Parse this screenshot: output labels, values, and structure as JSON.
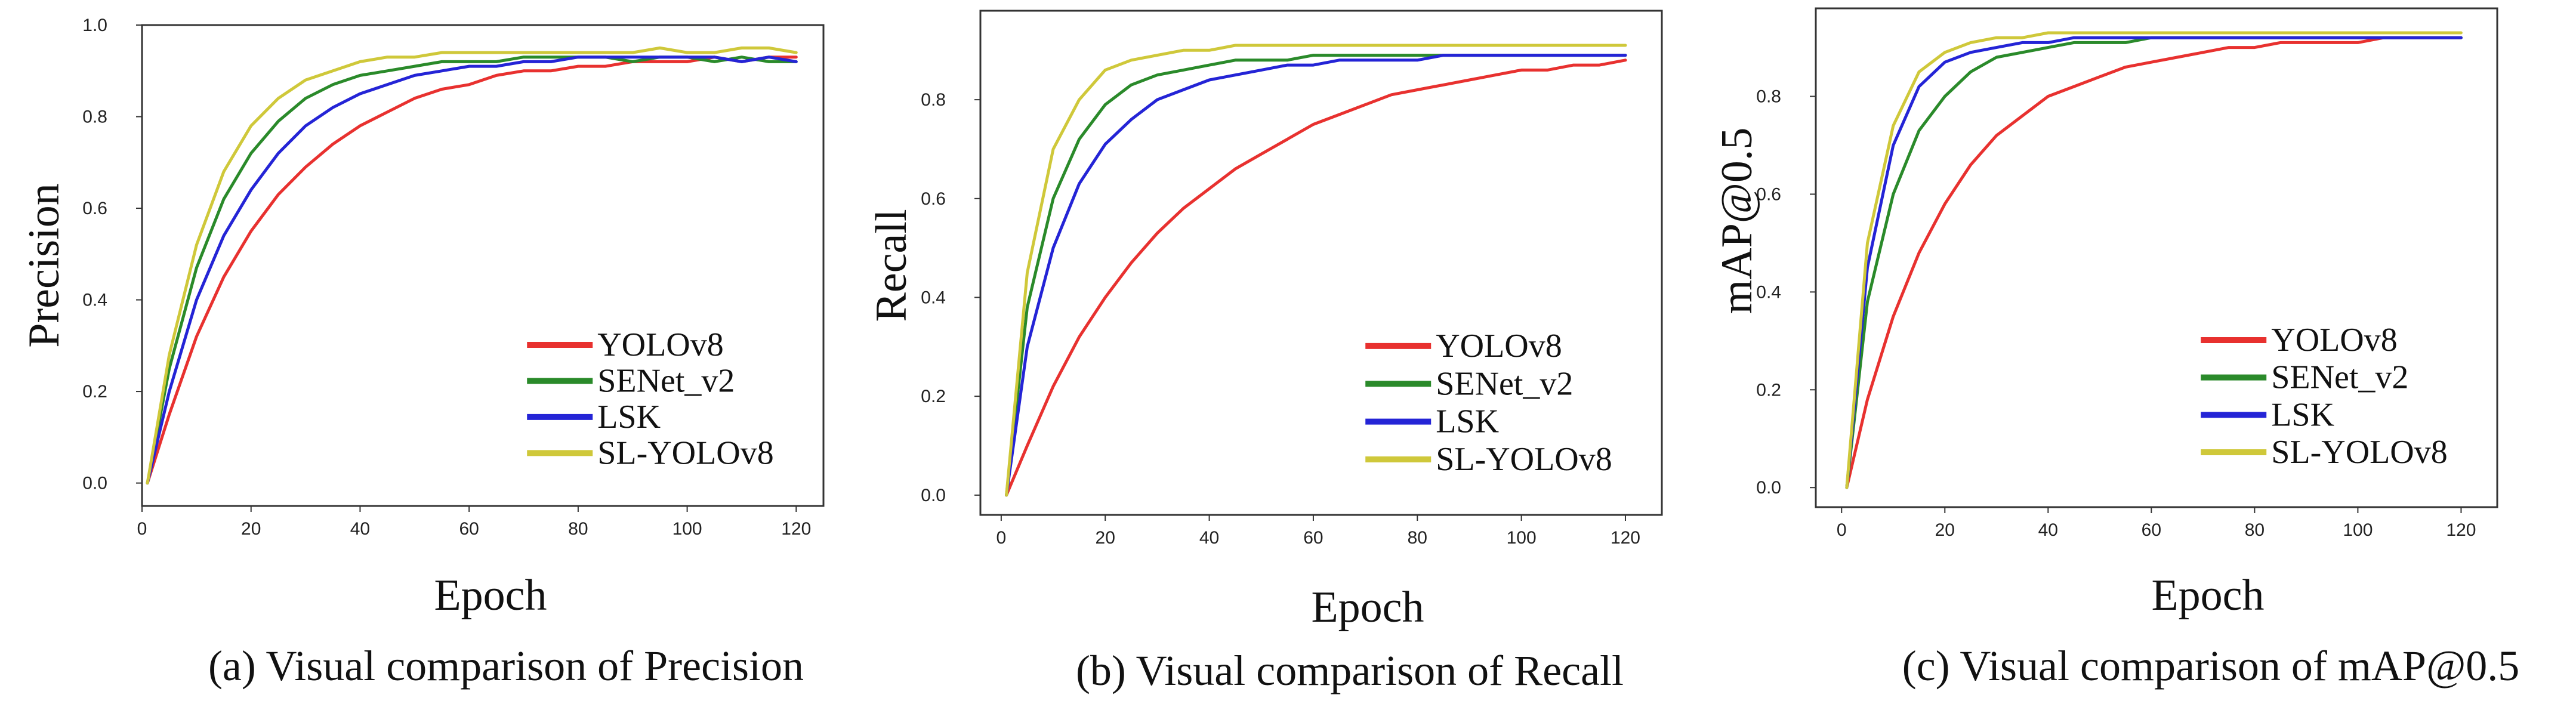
{
  "figure": {
    "colors": {
      "YOLOv8": "#e8312f",
      "SENet_v2": "#2a8a2a",
      "LSK": "#2424d6",
      "SL-YOLOv8": "#cfc83a"
    }
  },
  "chart_data": [
    {
      "type": "line",
      "ylabel": "Precision",
      "xlabel": "Epoch",
      "caption": "(a) Visual comparison of Precision",
      "xlim": [
        0,
        125
      ],
      "ylim": [
        -0.05,
        1.0
      ],
      "xticks": [
        0,
        20,
        40,
        60,
        80,
        100,
        120
      ],
      "xtick_labels": [
        "0",
        "20",
        "40",
        "60",
        "80",
        "100",
        "120"
      ],
      "yticks": [
        0.0,
        0.2,
        0.4,
        0.6,
        0.8,
        1.0
      ],
      "ytick_labels": [
        "0.0",
        "0.2",
        "0.4",
        "0.6",
        "0.8",
        "1.0"
      ],
      "legend": [
        "YOLOv8",
        "SENet_v2",
        "LSK",
        "SL-YOLOv8"
      ],
      "legend_position": "bottom-right",
      "x": [
        1,
        5,
        10,
        15,
        20,
        25,
        30,
        35,
        40,
        45,
        50,
        55,
        60,
        65,
        70,
        75,
        80,
        85,
        90,
        95,
        100,
        105,
        110,
        115,
        120
      ],
      "series": [
        {
          "name": "YOLOv8",
          "values": [
            0.0,
            0.15,
            0.32,
            0.45,
            0.55,
            0.63,
            0.69,
            0.74,
            0.78,
            0.81,
            0.84,
            0.86,
            0.87,
            0.89,
            0.9,
            0.9,
            0.91,
            0.91,
            0.92,
            0.92,
            0.92,
            0.93,
            0.92,
            0.93,
            0.93
          ]
        },
        {
          "name": "SENet_v2",
          "values": [
            0.0,
            0.25,
            0.47,
            0.62,
            0.72,
            0.79,
            0.84,
            0.87,
            0.89,
            0.9,
            0.91,
            0.92,
            0.92,
            0.92,
            0.93,
            0.93,
            0.93,
            0.93,
            0.92,
            0.93,
            0.93,
            0.92,
            0.93,
            0.92,
            0.92
          ]
        },
        {
          "name": "LSK",
          "values": [
            0.0,
            0.2,
            0.4,
            0.54,
            0.64,
            0.72,
            0.78,
            0.82,
            0.85,
            0.87,
            0.89,
            0.9,
            0.91,
            0.91,
            0.92,
            0.92,
            0.93,
            0.93,
            0.93,
            0.93,
            0.93,
            0.93,
            0.92,
            0.93,
            0.92
          ]
        },
        {
          "name": "SL-YOLOv8",
          "values": [
            0.0,
            0.28,
            0.52,
            0.68,
            0.78,
            0.84,
            0.88,
            0.9,
            0.92,
            0.93,
            0.93,
            0.94,
            0.94,
            0.94,
            0.94,
            0.94,
            0.94,
            0.94,
            0.94,
            0.95,
            0.94,
            0.94,
            0.95,
            0.95,
            0.94
          ]
        }
      ]
    },
    {
      "type": "line",
      "ylabel": "Recall",
      "xlabel": "Epoch",
      "caption": "(b) Visual comparison of Recall",
      "xlim": [
        -4,
        127
      ],
      "ylim": [
        -0.04,
        0.98
      ],
      "xticks": [
        0,
        20,
        40,
        60,
        80,
        100,
        120
      ],
      "xtick_labels": [
        "0",
        "20",
        "40",
        "60",
        "80",
        "100",
        "120"
      ],
      "yticks": [
        0.0,
        0.2,
        0.4,
        0.6,
        0.8
      ],
      "ytick_labels": [
        "0.0",
        "0.2",
        "0.4",
        "0.6",
        "0.8"
      ],
      "legend": [
        "YOLOv8",
        "SENet_v2",
        "LSK",
        "SL-YOLOv8"
      ],
      "legend_position": "bottom-right",
      "x": [
        1,
        5,
        10,
        15,
        20,
        25,
        30,
        35,
        40,
        45,
        50,
        55,
        60,
        65,
        70,
        75,
        80,
        85,
        90,
        95,
        100,
        105,
        110,
        115,
        120
      ],
      "series": [
        {
          "name": "YOLOv8",
          "values": [
            0.0,
            0.1,
            0.22,
            0.32,
            0.4,
            0.47,
            0.53,
            0.58,
            0.62,
            0.66,
            0.69,
            0.72,
            0.75,
            0.77,
            0.79,
            0.81,
            0.82,
            0.83,
            0.84,
            0.85,
            0.86,
            0.86,
            0.87,
            0.87,
            0.88
          ]
        },
        {
          "name": "SENet_v2",
          "values": [
            0.0,
            0.38,
            0.6,
            0.72,
            0.79,
            0.83,
            0.85,
            0.86,
            0.87,
            0.88,
            0.88,
            0.88,
            0.89,
            0.89,
            0.89,
            0.89,
            0.89,
            0.89,
            0.89,
            0.89,
            0.89,
            0.89,
            0.89,
            0.89,
            0.89
          ]
        },
        {
          "name": "LSK",
          "values": [
            0.0,
            0.3,
            0.5,
            0.63,
            0.71,
            0.76,
            0.8,
            0.82,
            0.84,
            0.85,
            0.86,
            0.87,
            0.87,
            0.88,
            0.88,
            0.88,
            0.88,
            0.89,
            0.89,
            0.89,
            0.89,
            0.89,
            0.89,
            0.89,
            0.89
          ]
        },
        {
          "name": "SL-YOLOv8",
          "values": [
            0.0,
            0.45,
            0.7,
            0.8,
            0.86,
            0.88,
            0.89,
            0.9,
            0.9,
            0.91,
            0.91,
            0.91,
            0.91,
            0.91,
            0.91,
            0.91,
            0.91,
            0.91,
            0.91,
            0.91,
            0.91,
            0.91,
            0.91,
            0.91,
            0.91
          ]
        }
      ]
    },
    {
      "type": "line",
      "ylabel": "mAP@0.5",
      "xlabel": "Epoch",
      "caption": "(c) Visual comparison of mAP@0.5",
      "xlim": [
        -5,
        127
      ],
      "ylim": [
        -0.04,
        0.98
      ],
      "xticks": [
        0,
        20,
        40,
        60,
        80,
        100,
        120
      ],
      "xtick_labels": [
        "0",
        "20",
        "40",
        "60",
        "80",
        "100",
        "120"
      ],
      "yticks": [
        0.0,
        0.2,
        0.4,
        0.6,
        0.8
      ],
      "ytick_labels": [
        "0.0",
        "0.2",
        "0.4",
        "0.6",
        "0.8"
      ],
      "legend": [
        "YOLOv8",
        "SENet_v2",
        "LSK",
        "SL-YOLOv8"
      ],
      "legend_position": "bottom-right",
      "x": [
        1,
        5,
        10,
        15,
        20,
        25,
        30,
        35,
        40,
        45,
        50,
        55,
        60,
        65,
        70,
        75,
        80,
        85,
        90,
        95,
        100,
        105,
        110,
        115,
        120
      ],
      "series": [
        {
          "name": "YOLOv8",
          "values": [
            0.0,
            0.18,
            0.35,
            0.48,
            0.58,
            0.66,
            0.72,
            0.76,
            0.8,
            0.82,
            0.84,
            0.86,
            0.87,
            0.88,
            0.89,
            0.9,
            0.9,
            0.91,
            0.91,
            0.91,
            0.91,
            0.92,
            0.92,
            0.92,
            0.92
          ]
        },
        {
          "name": "SENet_v2",
          "values": [
            0.0,
            0.38,
            0.6,
            0.73,
            0.8,
            0.85,
            0.88,
            0.89,
            0.9,
            0.91,
            0.91,
            0.91,
            0.92,
            0.92,
            0.92,
            0.92,
            0.92,
            0.92,
            0.92,
            0.92,
            0.92,
            0.92,
            0.92,
            0.92,
            0.92
          ]
        },
        {
          "name": "LSK",
          "values": [
            0.0,
            0.45,
            0.7,
            0.82,
            0.87,
            0.89,
            0.9,
            0.91,
            0.91,
            0.92,
            0.92,
            0.92,
            0.92,
            0.92,
            0.92,
            0.92,
            0.92,
            0.92,
            0.92,
            0.92,
            0.92,
            0.92,
            0.92,
            0.92,
            0.92
          ]
        },
        {
          "name": "SL-YOLOv8",
          "values": [
            0.0,
            0.5,
            0.74,
            0.85,
            0.89,
            0.91,
            0.92,
            0.92,
            0.93,
            0.93,
            0.93,
            0.93,
            0.93,
            0.93,
            0.93,
            0.93,
            0.93,
            0.93,
            0.93,
            0.93,
            0.93,
            0.93,
            0.93,
            0.93,
            0.93
          ]
        }
      ]
    }
  ]
}
